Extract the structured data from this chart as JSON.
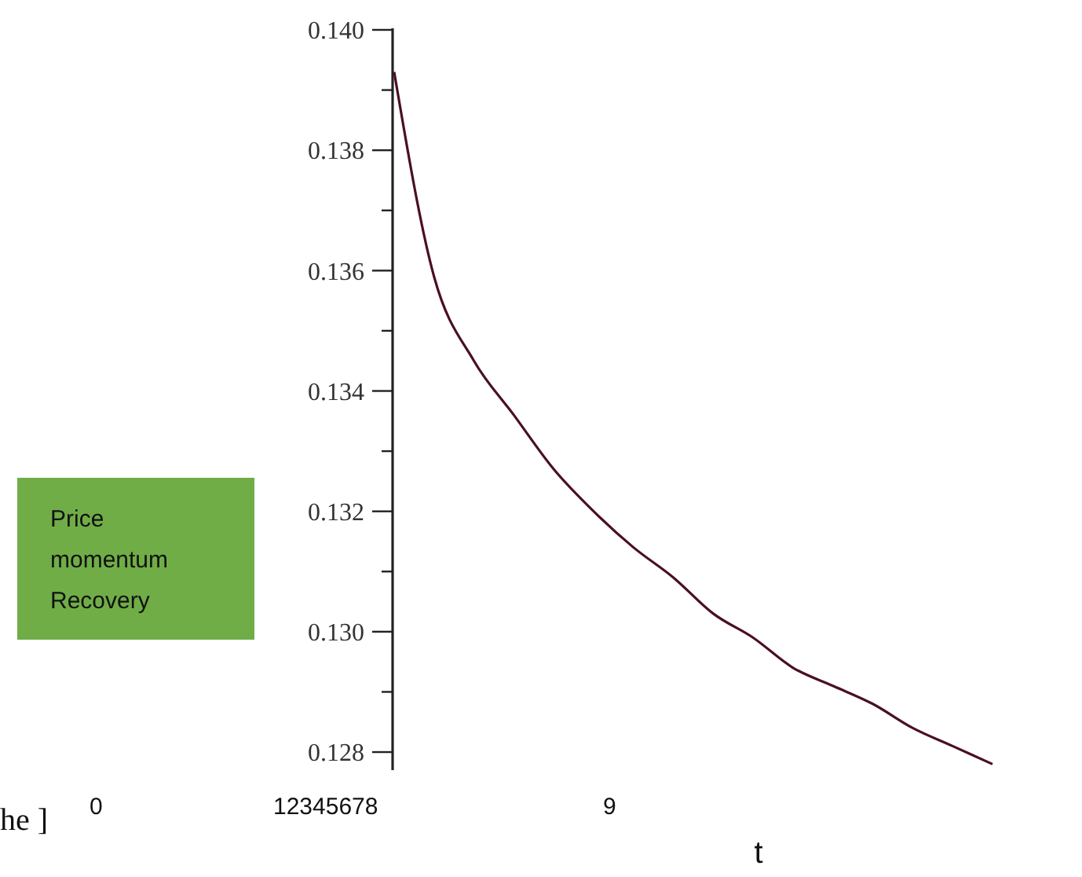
{
  "chart_data": {
    "type": "line",
    "xlabel": "t",
    "annotations": [
      "he ]",
      "0",
      "12345678",
      "9",
      "Price momentum Recovery"
    ],
    "categories": [
      null,
      null,
      null,
      null,
      null,
      null,
      null,
      null,
      null,
      null,
      null,
      null,
      null,
      null,
      null,
      null
    ],
    "series": [
      {
        "color": "#4a1020",
        "values": [
          0.1393,
          0.1359,
          0.1345,
          0.1336,
          0.1327,
          0.132,
          0.1314,
          0.1309,
          0.1303,
          0.1299,
          0.1294,
          0.1291,
          0.1288,
          0.1284,
          0.1281,
          0.1278
        ]
      }
    ],
    "ylim": [
      0.1277,
      0.14
    ],
    "yticks": [
      0.128,
      {
        "value": 0.129,
        "label": null
      },
      {
        "value": 0.13,
        "label": "0.130"
      },
      {
        "value": 0.131,
        "label": null
      },
      0.132,
      {
        "value": 0.133,
        "label": null
      },
      0.134,
      {
        "value": 0.135,
        "label": null
      },
      0.136,
      {
        "value": 0.137,
        "label": null
      },
      0.138,
      {
        "value": 0.139,
        "label": null
      },
      {
        "value": 0.14,
        "label": "0.140"
      }
    ],
    "grid": false,
    "marker": "none",
    "line_style": "solid"
  }
}
